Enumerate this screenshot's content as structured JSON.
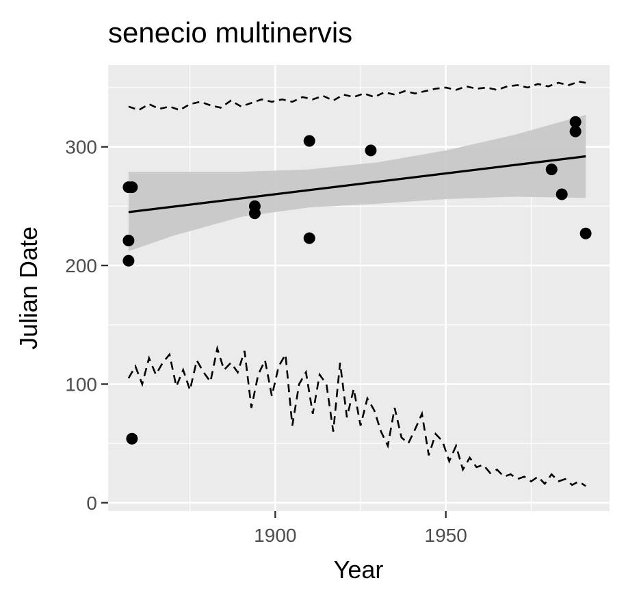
{
  "chart_data": {
    "type": "scatter",
    "title": "senecio multinervis",
    "xlabel": "Year",
    "ylabel": "Julian Date",
    "xlim": [
      1851,
      1998
    ],
    "ylim": [
      -7,
      369
    ],
    "xticks": [
      {
        "value": 1900,
        "label": "1900"
      },
      {
        "value": 1950,
        "label": "1950"
      }
    ],
    "yticks": [
      {
        "value": 0,
        "label": "0"
      },
      {
        "value": 100,
        "label": "100"
      },
      {
        "value": 200,
        "label": "200"
      },
      {
        "value": 300,
        "label": "300"
      }
    ],
    "grid": true,
    "legend": "none",
    "colors": {
      "panel": "#ebebeb",
      "grid": "#ffffff",
      "points": "#000000",
      "ribbon": "#c8c8c8",
      "tick_text": "#4d4d4d"
    },
    "points": [
      {
        "x": 1857,
        "y": 266
      },
      {
        "x": 1858,
        "y": 266
      },
      {
        "x": 1857,
        "y": 221
      },
      {
        "x": 1857,
        "y": 204
      },
      {
        "x": 1858,
        "y": 54
      },
      {
        "x": 1894,
        "y": 250
      },
      {
        "x": 1894,
        "y": 244
      },
      {
        "x": 1910,
        "y": 305
      },
      {
        "x": 1910,
        "y": 223
      },
      {
        "x": 1928,
        "y": 297
      },
      {
        "x": 1981,
        "y": 281
      },
      {
        "x": 1984,
        "y": 260
      },
      {
        "x": 1988,
        "y": 321
      },
      {
        "x": 1988,
        "y": 313
      },
      {
        "x": 1991,
        "y": 227
      }
    ],
    "trend_line": {
      "x": [
        1857,
        1991
      ],
      "y": [
        245,
        292
      ]
    },
    "confidence_band": {
      "x": [
        1857,
        1870,
        1890,
        1910,
        1930,
        1950,
        1970,
        1991
      ],
      "upper": [
        279,
        279,
        279,
        281,
        287,
        297,
        310,
        327
      ],
      "lower": [
        212,
        225,
        241,
        249,
        252,
        256,
        258,
        257
      ]
    },
    "upper_dashed_line": {
      "x": [
        1857,
        1860,
        1863,
        1866,
        1869,
        1872,
        1875,
        1878,
        1881,
        1884,
        1887,
        1890,
        1893,
        1896,
        1899,
        1902,
        1905,
        1908,
        1911,
        1914,
        1917,
        1920,
        1923,
        1926,
        1929,
        1932,
        1935,
        1938,
        1941,
        1944,
        1947,
        1950,
        1953,
        1956,
        1959,
        1962,
        1965,
        1968,
        1971,
        1974,
        1977,
        1980,
        1983,
        1986,
        1989,
        1991
      ],
      "y": [
        334,
        331,
        336,
        332,
        334,
        331,
        336,
        338,
        335,
        333,
        339,
        334,
        337,
        340,
        338,
        340,
        338,
        342,
        340,
        343,
        339,
        344,
        342,
        345,
        342,
        346,
        344,
        347,
        345,
        347,
        349,
        350,
        348,
        351,
        349,
        350,
        348,
        351,
        352,
        350,
        353,
        351,
        354,
        352,
        355,
        354
      ]
    },
    "lower_dashed_line": {
      "x": [
        1857,
        1859,
        1861,
        1863,
        1865,
        1867,
        1869,
        1871,
        1873,
        1875,
        1877,
        1879,
        1881,
        1883,
        1885,
        1887,
        1889,
        1891,
        1893,
        1895,
        1897,
        1899,
        1901,
        1903,
        1905,
        1907,
        1909,
        1911,
        1913,
        1915,
        1917,
        1919,
        1921,
        1923,
        1925,
        1927,
        1929,
        1931,
        1933,
        1935,
        1937,
        1939,
        1941,
        1943,
        1945,
        1947,
        1949,
        1951,
        1953,
        1955,
        1957,
        1959,
        1961,
        1963,
        1965,
        1967,
        1969,
        1971,
        1973,
        1975,
        1977,
        1979,
        1981,
        1983,
        1985,
        1987,
        1989,
        1991
      ],
      "y": [
        105,
        115,
        100,
        122,
        108,
        118,
        125,
        98,
        112,
        95,
        120,
        110,
        102,
        130,
        112,
        118,
        110,
        128,
        80,
        108,
        120,
        90,
        115,
        125,
        65,
        100,
        110,
        75,
        108,
        100,
        60,
        118,
        72,
        96,
        65,
        88,
        78,
        60,
        48,
        80,
        55,
        50,
        62,
        75,
        40,
        58,
        52,
        35,
        48,
        28,
        38,
        30,
        32,
        25,
        28,
        22,
        24,
        20,
        22,
        18,
        22,
        16,
        24,
        18,
        20,
        15,
        18,
        14
      ]
    }
  }
}
